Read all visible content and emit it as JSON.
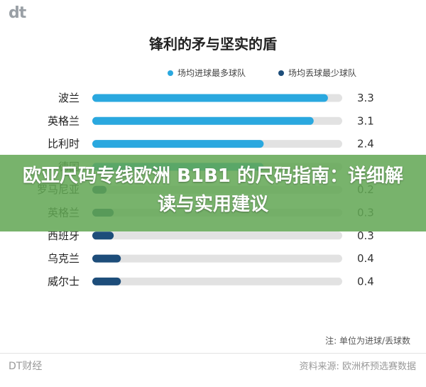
{
  "brand": {
    "logo_text": "dt",
    "name": "DT财经"
  },
  "overlay": {
    "headline": "欧亚尺码专线欧洲 B1B1 的尺码指南：详细解读与实用建议"
  },
  "note": "注: 单位为进球/丢球数",
  "source": "资料来源: 欧洲杯预选赛数据",
  "colors": {
    "attack": "#2aa8df",
    "defense": "#1d4d7a",
    "track": "#e2e2e2"
  },
  "chart_data": [
    {
      "type": "bar",
      "orientation": "horizontal",
      "title": "锋利的矛与坚实的盾",
      "legend": "top-right",
      "series_names": [
        "场均进球最多球队",
        "场均丢球最少球队"
      ],
      "xlim": [
        0,
        3.5
      ],
      "items": [
        {
          "category": "波兰",
          "value": 3.3,
          "label": "3.3",
          "series": 0
        },
        {
          "category": "英格兰",
          "value": 3.1,
          "label": "3.1",
          "series": 0
        },
        {
          "category": "比利时",
          "value": 2.4,
          "label": "2.4",
          "series": 0
        },
        {
          "category": "德国",
          "value": 2.4,
          "label": "",
          "series": 0
        },
        {
          "category": "罗马尼亚",
          "value": 0.2,
          "label": "0.2",
          "series": 1
        },
        {
          "category": "英格兰",
          "value": 0.3,
          "label": "0.3",
          "series": 1
        },
        {
          "category": "西班牙",
          "value": 0.3,
          "label": "0.3",
          "series": 1
        },
        {
          "category": "乌克兰",
          "value": 0.4,
          "label": "0.4",
          "series": 1
        },
        {
          "category": "威尔士",
          "value": 0.4,
          "label": "0.4",
          "series": 1
        }
      ]
    }
  ]
}
